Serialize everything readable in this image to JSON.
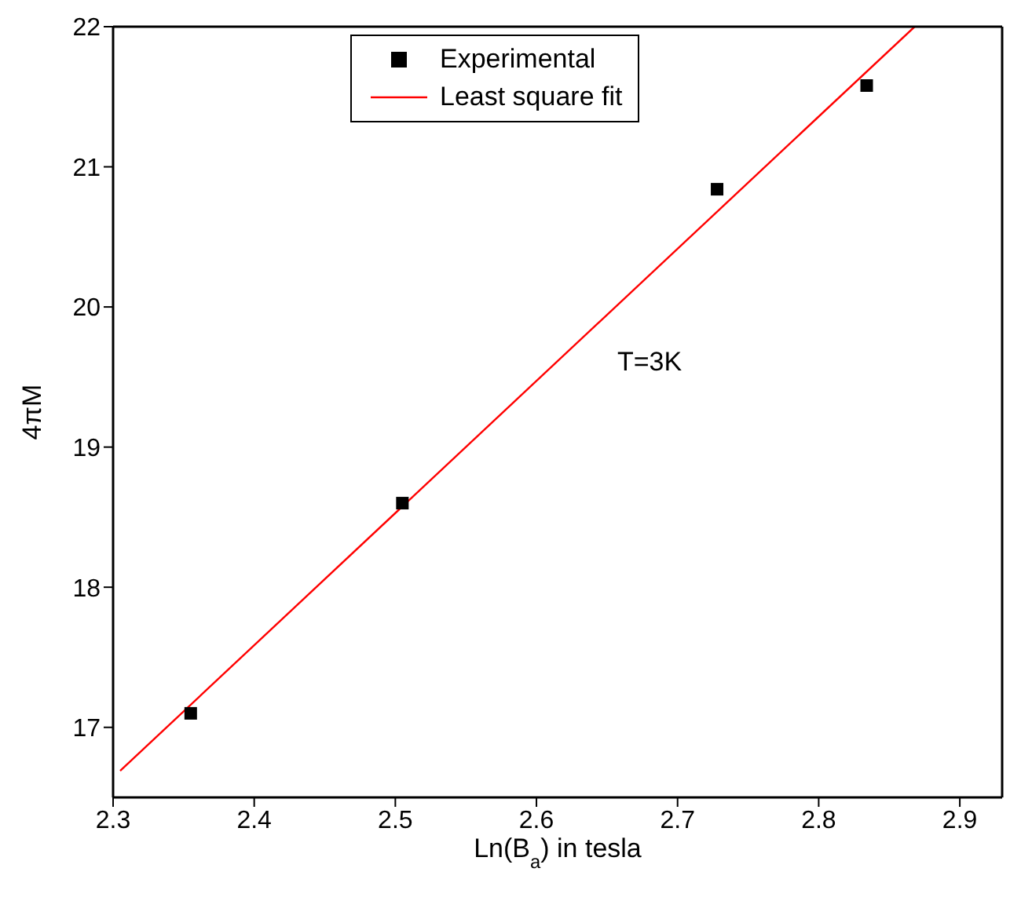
{
  "chart_data": {
    "type": "scatter",
    "xlabel": "Ln(B$_{a}$) in tesla",
    "ylabel": "4πM",
    "xlim": [
      2.3,
      2.93
    ],
    "xticks": [
      2.3,
      2.4,
      2.5,
      2.6,
      2.7,
      2.8,
      2.9
    ],
    "ylim": [
      16.5,
      22
    ],
    "yticks": [
      17,
      18,
      19,
      20,
      21,
      22
    ],
    "series": [
      {
        "name": "Experimental",
        "color": "#000000",
        "marker": "square",
        "x": [
          2.355,
          2.505,
          2.728,
          2.834
        ],
        "values": [
          17.1,
          18.6,
          20.84,
          21.58
        ]
      },
      {
        "name": "Least square fit",
        "type": "line",
        "color": "#ff0000",
        "marker": "none",
        "line_style": "solid",
        "x": [
          2.305,
          2.868
        ],
        "values": [
          16.69,
          22
        ]
      }
    ],
    "annotations": [
      "T=3K"
    ],
    "legend": "top",
    "grid": false
  }
}
